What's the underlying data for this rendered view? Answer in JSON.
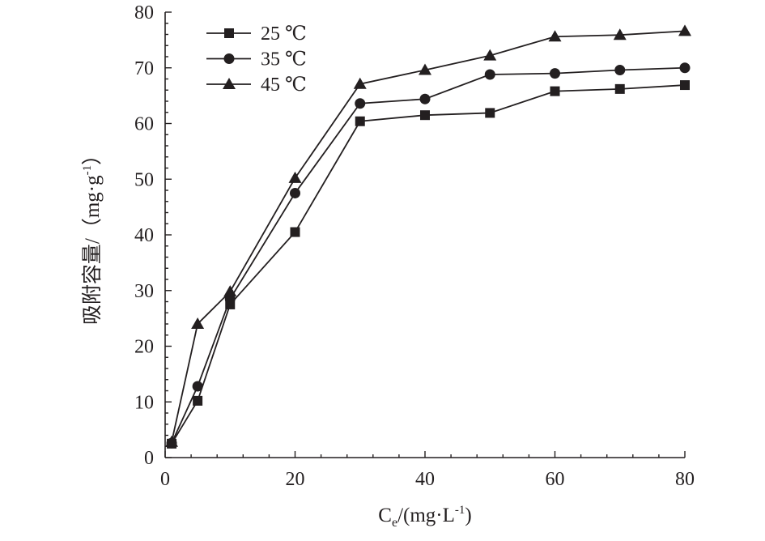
{
  "chart_data": {
    "type": "line",
    "xlabel": {
      "main": "C",
      "sub": "e",
      "rest": "/(mg·L",
      "sup": "-1",
      "close": ")"
    },
    "ylabel": {
      "main": "吸附容量/（mg·g",
      "sup": "-1",
      "close": "）"
    },
    "xlim": [
      0,
      80
    ],
    "ylim": [
      0,
      80
    ],
    "xticks": [
      0,
      20,
      40,
      60,
      80
    ],
    "yticks": [
      0,
      10,
      20,
      30,
      40,
      50,
      60,
      70,
      80
    ],
    "grid": false,
    "legend_position": "top-left",
    "x": [
      1,
      5,
      10,
      20,
      30,
      40,
      50,
      60,
      70,
      80
    ],
    "series": [
      {
        "name": "25 ℃",
        "marker": "square",
        "values": [
          2.5,
          10.2,
          27.5,
          40.5,
          60.4,
          61.5,
          61.9,
          65.8,
          66.2,
          66.9
        ]
      },
      {
        "name": "35 ℃",
        "marker": "circle",
        "values": [
          2.6,
          12.8,
          28.5,
          47.5,
          63.6,
          64.4,
          68.8,
          69.0,
          69.6,
          70.0
        ]
      },
      {
        "name": "45 ℃",
        "marker": "triangle",
        "values": [
          2.8,
          24.0,
          29.8,
          50.2,
          67.1,
          69.6,
          72.2,
          75.6,
          75.9,
          76.6
        ]
      }
    ]
  }
}
